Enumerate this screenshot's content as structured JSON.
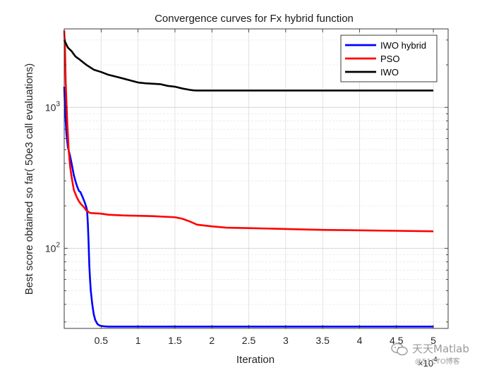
{
  "chart_data": {
    "type": "line",
    "title": "Convergence curves for Fx hybrid function",
    "xlabel": "Iteration",
    "ylabel": "Best score obtained so far( 50e3 call evaluations)",
    "x_scale_label": "×10^4",
    "x_scale_base": "×10",
    "x_scale_exp": "4",
    "xlim": [
      0,
      5.2
    ],
    "ylim": [
      27,
      3600
    ],
    "yscale": "log",
    "grid": true,
    "legend_position": "top-right",
    "x_ticks": [
      0.5,
      1,
      1.5,
      2,
      2.5,
      3,
      3.5,
      4,
      4.5,
      5
    ],
    "x_tick_labels": [
      "0.5",
      "1",
      "1.5",
      "2",
      "2.5",
      "3",
      "3.5",
      "4",
      "4.5",
      "5"
    ],
    "y_ticks": [
      100,
      1000
    ],
    "y_tick_base": "10",
    "y_tick_exps": [
      "2",
      "3"
    ],
    "series": [
      {
        "name": "IWO hybrid",
        "color": "#0000ff",
        "x": [
          0,
          0.01,
          0.03,
          0.05,
          0.08,
          0.1,
          0.13,
          0.16,
          0.18,
          0.2,
          0.22,
          0.25,
          0.28,
          0.3,
          0.31,
          0.32,
          0.33,
          0.34,
          0.35,
          0.36,
          0.38,
          0.4,
          0.42,
          0.45,
          0.48,
          0.52,
          0.56,
          0.6,
          0.8,
          1.0,
          2.0,
          3.0,
          4.0,
          5.0
        ],
        "values": [
          1400,
          1000,
          650,
          520,
          450,
          400,
          330,
          290,
          270,
          255,
          250,
          230,
          210,
          195,
          185,
          150,
          110,
          75,
          60,
          50,
          40,
          34,
          31,
          29,
          28.3,
          28.0,
          27.9,
          27.8,
          27.8,
          27.8,
          27.8,
          27.8,
          27.8,
          27.8
        ]
      },
      {
        "name": "PSO",
        "color": "#ff0000",
        "x": [
          0,
          0.01,
          0.02,
          0.04,
          0.06,
          0.08,
          0.1,
          0.13,
          0.17,
          0.2,
          0.23,
          0.27,
          0.3,
          0.35,
          0.5,
          0.6,
          0.8,
          1.0,
          1.2,
          1.5,
          1.6,
          1.7,
          1.8,
          2.0,
          2.2,
          2.5,
          3.0,
          3.5,
          4.0,
          4.5,
          5.0
        ],
        "values": [
          3500,
          2700,
          1500,
          800,
          500,
          380,
          320,
          260,
          230,
          215,
          205,
          195,
          185,
          178,
          176,
          173,
          171,
          170,
          169,
          166,
          162,
          155,
          147,
          143,
          140,
          139,
          137,
          135,
          134,
          133,
          132
        ]
      },
      {
        "name": "IWO",
        "color": "#000000",
        "x": [
          0,
          0.05,
          0.1,
          0.15,
          0.2,
          0.3,
          0.4,
          0.5,
          0.6,
          0.7,
          0.8,
          0.9,
          1.0,
          1.1,
          1.2,
          1.3,
          1.4,
          1.5,
          1.6,
          1.7,
          1.75,
          1.8,
          2.0,
          2.5,
          3.0,
          3.5,
          4.0,
          4.5,
          5.0
        ],
        "values": [
          3000,
          2650,
          2500,
          2300,
          2200,
          2000,
          1850,
          1780,
          1700,
          1650,
          1600,
          1550,
          1500,
          1480,
          1470,
          1460,
          1420,
          1400,
          1360,
          1330,
          1320,
          1315,
          1315,
          1315,
          1315,
          1315,
          1315,
          1315,
          1315
        ]
      }
    ]
  },
  "watermark": {
    "main": "天天Matlab",
    "sub": "@51CTO博客"
  }
}
